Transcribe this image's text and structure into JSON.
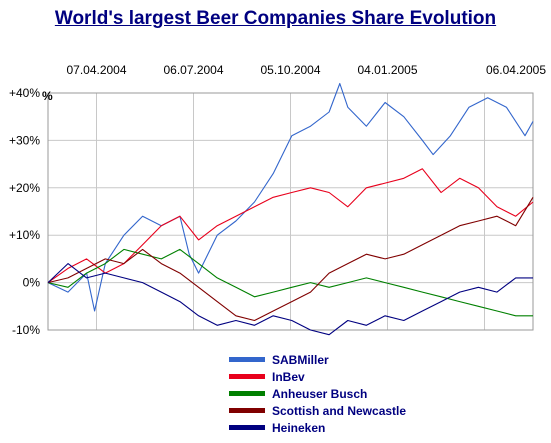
{
  "chart_data": {
    "type": "line",
    "title": "World's largest Beer Companies Share Evolution",
    "ylabel": "%",
    "x_ticks": [
      "07.04.2004",
      "06.07.2004",
      "05.10.2004",
      "04.01.2005",
      "06.04.2005"
    ],
    "y_ticks": [
      {
        "value": 40,
        "label": "+40%"
      },
      {
        "value": 30,
        "label": "+30%"
      },
      {
        "value": 20,
        "label": "+20%"
      },
      {
        "value": 10,
        "label": "+10%"
      },
      {
        "value": 0,
        "label": "0%"
      },
      {
        "value": -10,
        "label": "-10%"
      }
    ],
    "xlim": [
      "2004-04-07",
      "2005-04-06"
    ],
    "ylim": [
      -10,
      40
    ],
    "grid": true,
    "legend_position": "bottom",
    "series": [
      {
        "name": "SABMiller",
        "color": "#3366cc",
        "x": [
          "2004-04-07",
          "2004-04-22",
          "2004-05-06",
          "2004-05-12",
          "2004-05-20",
          "2004-06-03",
          "2004-06-17",
          "2004-07-01",
          "2004-07-15",
          "2004-07-22",
          "2004-07-29",
          "2004-08-12",
          "2004-08-26",
          "2004-09-09",
          "2004-09-23",
          "2004-10-07",
          "2004-10-21",
          "2004-11-04",
          "2004-11-12",
          "2004-11-18",
          "2004-12-02",
          "2004-12-16",
          "2004-12-30",
          "2005-01-13",
          "2005-01-21",
          "2005-02-03",
          "2005-02-17",
          "2005-03-03",
          "2005-03-17",
          "2005-03-31",
          "2005-04-06"
        ],
        "values": [
          0,
          -2,
          2,
          -6,
          4,
          10,
          14,
          12,
          14,
          6,
          2,
          10,
          13,
          17,
          23,
          31,
          33,
          36,
          42,
          37,
          33,
          38,
          35,
          30,
          27,
          31,
          37,
          39,
          37,
          31,
          34
        ]
      },
      {
        "name": "InBev",
        "color": "#e8001c",
        "x": [
          "2004-04-07",
          "2004-04-22",
          "2004-05-06",
          "2004-05-20",
          "2004-06-03",
          "2004-06-17",
          "2004-07-01",
          "2004-07-15",
          "2004-07-29",
          "2004-08-12",
          "2004-08-26",
          "2004-09-09",
          "2004-09-23",
          "2004-10-07",
          "2004-10-21",
          "2004-11-04",
          "2004-11-18",
          "2004-12-02",
          "2004-12-16",
          "2004-12-30",
          "2005-01-13",
          "2005-01-27",
          "2005-02-10",
          "2005-02-24",
          "2005-03-10",
          "2005-03-24",
          "2005-04-06"
        ],
        "values": [
          0,
          3,
          5,
          2,
          4,
          8,
          12,
          14,
          9,
          12,
          14,
          16,
          18,
          19,
          20,
          19,
          16,
          20,
          21,
          22,
          24,
          19,
          22,
          20,
          16,
          14,
          17
        ]
      },
      {
        "name": "Anheuser Busch",
        "color": "#008000",
        "x": [
          "2004-04-07",
          "2004-04-22",
          "2004-05-06",
          "2004-05-20",
          "2004-06-03",
          "2004-06-17",
          "2004-07-01",
          "2004-07-15",
          "2004-07-29",
          "2004-08-12",
          "2004-08-26",
          "2004-09-09",
          "2004-09-23",
          "2004-10-07",
          "2004-10-21",
          "2004-11-04",
          "2004-11-18",
          "2004-12-02",
          "2004-12-16",
          "2004-12-30",
          "2005-01-13",
          "2005-01-27",
          "2005-02-10",
          "2005-02-24",
          "2005-03-10",
          "2005-03-24",
          "2005-04-06"
        ],
        "values": [
          0,
          -1,
          2,
          4,
          7,
          6,
          5,
          7,
          4,
          1,
          -1,
          -3,
          -2,
          -1,
          0,
          -1,
          0,
          1,
          0,
          -1,
          -2,
          -3,
          -4,
          -5,
          -6,
          -7,
          -7
        ]
      },
      {
        "name": "Scottish and Newcastle",
        "color": "#800000",
        "x": [
          "2004-04-07",
          "2004-04-22",
          "2004-05-06",
          "2004-05-20",
          "2004-06-03",
          "2004-06-17",
          "2004-07-01",
          "2004-07-15",
          "2004-07-29",
          "2004-08-12",
          "2004-08-26",
          "2004-09-09",
          "2004-09-23",
          "2004-10-07",
          "2004-10-21",
          "2004-11-04",
          "2004-11-18",
          "2004-12-02",
          "2004-12-16",
          "2004-12-30",
          "2005-01-13",
          "2005-01-27",
          "2005-02-10",
          "2005-02-24",
          "2005-03-10",
          "2005-03-24",
          "2005-04-06"
        ],
        "values": [
          0,
          1,
          3,
          5,
          4,
          7,
          4,
          2,
          -1,
          -4,
          -7,
          -8,
          -6,
          -4,
          -2,
          2,
          4,
          6,
          5,
          6,
          8,
          10,
          12,
          13,
          14,
          12,
          18
        ]
      },
      {
        "name": "Heineken",
        "color": "#000080",
        "x": [
          "2004-04-07",
          "2004-04-22",
          "2004-05-06",
          "2004-05-20",
          "2004-06-03",
          "2004-06-17",
          "2004-07-01",
          "2004-07-15",
          "2004-07-29",
          "2004-08-12",
          "2004-08-26",
          "2004-09-09",
          "2004-09-23",
          "2004-10-07",
          "2004-10-21",
          "2004-11-04",
          "2004-11-18",
          "2004-12-02",
          "2004-12-16",
          "2004-12-30",
          "2005-01-13",
          "2005-01-27",
          "2005-02-10",
          "2005-02-24",
          "2005-03-10",
          "2005-03-24",
          "2005-04-06"
        ],
        "values": [
          0,
          4,
          1,
          2,
          1,
          0,
          -2,
          -4,
          -7,
          -9,
          -8,
          -9,
          -7,
          -8,
          -10,
          -11,
          -8,
          -9,
          -7,
          -8,
          -6,
          -4,
          -2,
          -1,
          -2,
          1,
          1
        ]
      }
    ]
  }
}
